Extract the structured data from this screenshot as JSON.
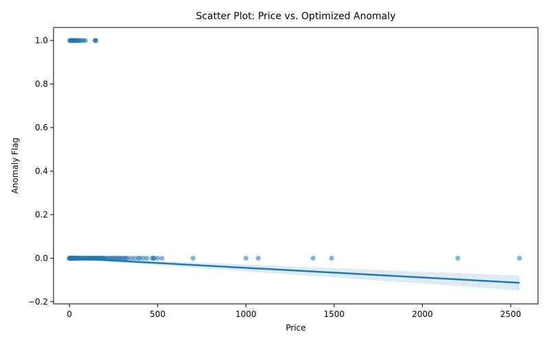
{
  "chart_data": {
    "type": "scatter",
    "title": "Scatter Plot: Price vs. Optimized Anomaly",
    "xlabel": "Price",
    "ylabel": "Anomaly Flag",
    "xlim": [
      -90,
      2655
    ],
    "ylim": [
      -0.21,
      1.06
    ],
    "xticks": [
      0,
      500,
      1000,
      1500,
      2000,
      2500
    ],
    "yticks": [
      -0.2,
      0.0,
      0.2,
      0.4,
      0.6,
      0.8,
      1.0
    ],
    "ytick_labels": [
      "−0.2",
      "0.0",
      "0.2",
      "0.4",
      "0.6",
      "0.8",
      "1.0"
    ],
    "grid": false,
    "colors": {
      "points": "#1f77b4",
      "line": "#1f77b4",
      "band": "#1f77b4"
    },
    "series": [
      {
        "kind": "points",
        "x": [
          0,
          1,
          2,
          3,
          4,
          5,
          6,
          7,
          8,
          9,
          10,
          12,
          14,
          15,
          16,
          18,
          20,
          22,
          24,
          25,
          28,
          30,
          32,
          35,
          38,
          40,
          42,
          45,
          48,
          50,
          55,
          60,
          65,
          70,
          75,
          80,
          85,
          90,
          95,
          100,
          105,
          110,
          115,
          120,
          125,
          130,
          135,
          140,
          145,
          150,
          155,
          160,
          165,
          170,
          175,
          180,
          185,
          190,
          195,
          200,
          210,
          220,
          230,
          240,
          250,
          260,
          270,
          280,
          290,
          300,
          310,
          320,
          330,
          350,
          370,
          390,
          400,
          420,
          440,
          470,
          475,
          480,
          500,
          525,
          700,
          1000,
          1070,
          1380,
          1485,
          2200,
          2550,
          2,
          5,
          8,
          10,
          12,
          15,
          18,
          20,
          22,
          25,
          28,
          30,
          33,
          36,
          40,
          45,
          50,
          55,
          60,
          70,
          80,
          90,
          145,
          148,
          150
        ],
        "y": [
          0,
          0,
          0,
          0,
          0,
          0,
          0,
          0,
          0,
          0,
          0,
          0,
          0,
          0,
          0,
          0,
          0,
          0,
          0,
          0,
          0,
          0,
          0,
          0,
          0,
          0,
          0,
          0,
          0,
          0,
          0,
          0,
          0,
          0,
          0,
          0,
          0,
          0,
          0,
          0,
          0,
          0,
          0,
          0,
          0,
          0,
          0,
          0,
          0,
          0,
          0,
          0,
          0,
          0,
          0,
          0,
          0,
          0,
          0,
          0,
          0,
          0,
          0,
          0,
          0,
          0,
          0,
          0,
          0,
          0,
          0,
          0,
          0,
          0,
          0,
          0,
          0,
          0,
          0,
          0,
          0,
          0,
          0,
          0,
          0,
          0,
          0,
          0,
          0,
          0,
          0,
          1,
          1,
          1,
          1,
          1,
          1,
          1,
          1,
          1,
          1,
          1,
          1,
          1,
          1,
          1,
          1,
          1,
          1,
          1,
          1,
          1,
          1,
          1,
          1,
          1
        ]
      },
      {
        "kind": "regression",
        "x": [
          0,
          2550
        ],
        "y": [
          0.0,
          -0.113
        ],
        "ci_upper": [
          0.004,
          -0.08
        ],
        "ci_lower": [
          -0.004,
          -0.148
        ]
      }
    ]
  }
}
